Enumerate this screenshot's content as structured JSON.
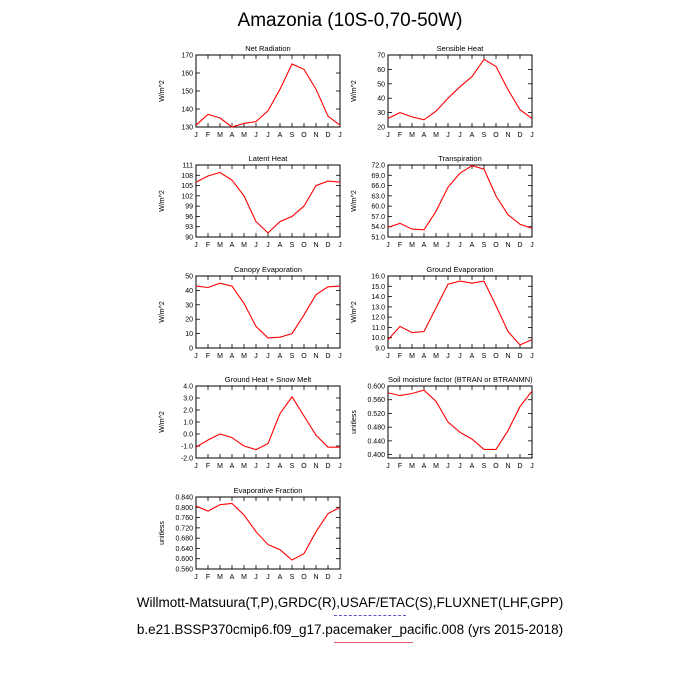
{
  "title": "Amazonia (10S-0,70-50W)",
  "footer": {
    "source": "Willmott-Matsuura(T,P),GRDC(R),USAF/ETAC(S),FLUXNET(LHF,GPP)",
    "case": "b.e21.BSSP370cmip6.f09_g17.pacemaker_pacific.008 (yrs 2015-2018)"
  },
  "colors": {
    "line": "#ff0000",
    "axis": "#000000",
    "source_underline": "#5a56c8",
    "case_underline": "#e05a6a"
  },
  "chart_data": [
    {
      "type": "line",
      "title": "Net Radiation",
      "ylabel": "W/m^2",
      "categories": [
        "J",
        "F",
        "M",
        "A",
        "M",
        "J",
        "J",
        "A",
        "S",
        "O",
        "N",
        "D",
        "J"
      ],
      "ylim": [
        130,
        170
      ],
      "yticks": [
        "130",
        "140",
        "150",
        "160",
        "170"
      ],
      "values": [
        131,
        137,
        135,
        130,
        132,
        133,
        139,
        151,
        165,
        162,
        151,
        136,
        131
      ]
    },
    {
      "type": "line",
      "title": "Sensible Heat",
      "ylabel": "W/m^2",
      "categories": [
        "J",
        "F",
        "M",
        "A",
        "M",
        "J",
        "J",
        "A",
        "S",
        "O",
        "N",
        "D",
        "J"
      ],
      "ylim": [
        20,
        70
      ],
      "yticks": [
        "20",
        "30",
        "40",
        "50",
        "60",
        "70"
      ],
      "values": [
        26,
        30,
        27,
        25,
        31,
        40,
        48,
        55,
        67,
        62,
        46,
        32,
        26
      ]
    },
    {
      "type": "line",
      "title": "Latent Heat",
      "ylabel": "W/m^2",
      "categories": [
        "J",
        "F",
        "M",
        "A",
        "M",
        "J",
        "J",
        "A",
        "S",
        "O",
        "N",
        "D",
        "J"
      ],
      "ylim": [
        90,
        111
      ],
      "yticks": [
        "90",
        "93",
        "96",
        "99",
        "102",
        "105",
        "108",
        "111"
      ],
      "values": [
        106,
        107.8,
        108.8,
        106.6,
        102,
        94.5,
        91.2,
        94.5,
        96,
        99,
        105,
        106.3,
        106
      ]
    },
    {
      "type": "line",
      "title": "Transpiration",
      "ylabel": "W/m^2",
      "categories": [
        "J",
        "F",
        "M",
        "A",
        "M",
        "J",
        "J",
        "A",
        "S",
        "O",
        "N",
        "D",
        "J"
      ],
      "ylim": [
        51,
        72
      ],
      "yticks": [
        "51.0",
        "54.0",
        "57.0",
        "60.0",
        "63.0",
        "66.0",
        "69.0",
        "72.0"
      ],
      "values": [
        53.8,
        55,
        53.3,
        53.1,
        58.5,
        65.5,
        69.6,
        71.8,
        70.8,
        63,
        57.5,
        54.7,
        53.5
      ]
    },
    {
      "type": "line",
      "title": "Canopy Evaporation",
      "ylabel": "W/m^2",
      "categories": [
        "J",
        "F",
        "M",
        "A",
        "M",
        "J",
        "J",
        "A",
        "S",
        "O",
        "N",
        "D",
        "J"
      ],
      "ylim": [
        0,
        50
      ],
      "yticks": [
        "0",
        "10",
        "20",
        "30",
        "40",
        "50"
      ],
      "values": [
        43,
        42,
        45,
        43,
        31,
        15,
        7,
        7.5,
        10,
        23,
        37,
        42.5,
        43
      ]
    },
    {
      "type": "line",
      "title": "Ground Evaporation",
      "ylabel": "W/m^2",
      "categories": [
        "J",
        "F",
        "M",
        "A",
        "M",
        "J",
        "J",
        "A",
        "S",
        "O",
        "N",
        "D",
        "J"
      ],
      "ylim": [
        9,
        16
      ],
      "yticks": [
        "9.0",
        "10.0",
        "11.0",
        "12.0",
        "13.0",
        "14.0",
        "15.0",
        "16.0"
      ],
      "values": [
        9.8,
        11.1,
        10.5,
        10.6,
        12.9,
        15.2,
        15.5,
        15.3,
        15.5,
        13.1,
        10.6,
        9.3,
        9.8
      ]
    },
    {
      "type": "line",
      "title": "Ground Heat + Snow Melt",
      "ylabel": "W/m^2",
      "categories": [
        "J",
        "F",
        "M",
        "A",
        "M",
        "J",
        "J",
        "A",
        "S",
        "O",
        "N",
        "D",
        "J"
      ],
      "ylim": [
        -2,
        4
      ],
      "yticks": [
        "-2.0",
        "-1.0",
        "0.0",
        "1.0",
        "2.0",
        "3.0",
        "4.0"
      ],
      "values": [
        -1.1,
        -0.5,
        0,
        -0.3,
        -1,
        -1.3,
        -0.8,
        1.7,
        3.1,
        1.5,
        -0.1,
        -1.1,
        -1.1
      ]
    },
    {
      "type": "line",
      "title": "Soil moisture factor (BTRAN or BTRANMN)",
      "ylabel": "unitless",
      "categories": [
        "J",
        "F",
        "M",
        "A",
        "M",
        "J",
        "J",
        "A",
        "S",
        "O",
        "N",
        "D",
        "J"
      ],
      "ylim": [
        0.39,
        0.6
      ],
      "yticks": [
        "0.400",
        "0.440",
        "0.480",
        "0.520",
        "0.560",
        "0.600"
      ],
      "values": [
        0.58,
        0.572,
        0.578,
        0.588,
        0.555,
        0.495,
        0.465,
        0.445,
        0.415,
        0.415,
        0.47,
        0.54,
        0.585
      ]
    },
    {
      "type": "line",
      "title": "Evaporative Fraction",
      "ylabel": "unitless",
      "categories": [
        "J",
        "F",
        "M",
        "A",
        "M",
        "J",
        "J",
        "A",
        "S",
        "O",
        "N",
        "D",
        "J"
      ],
      "ylim": [
        0.56,
        0.84
      ],
      "yticks": [
        "0.560",
        "0.600",
        "0.640",
        "0.680",
        "0.720",
        "0.760",
        "0.800",
        "0.840"
      ],
      "values": [
        0.805,
        0.785,
        0.81,
        0.815,
        0.77,
        0.705,
        0.655,
        0.635,
        0.595,
        0.62,
        0.705,
        0.775,
        0.8
      ]
    }
  ]
}
